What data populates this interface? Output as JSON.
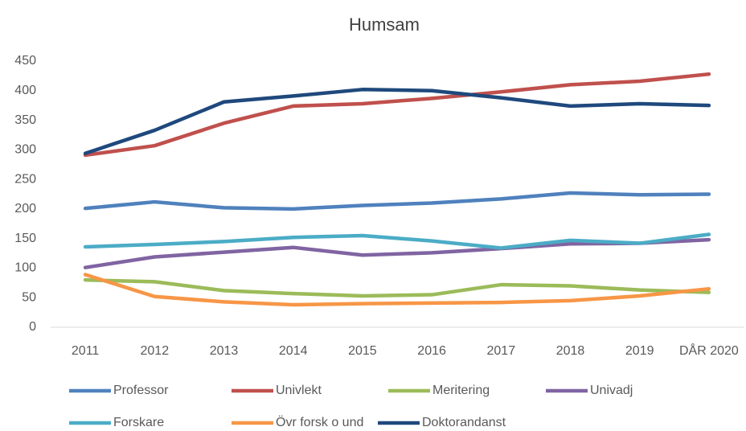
{
  "chart_data": {
    "type": "line",
    "title": "Humsam",
    "categories": [
      "2011",
      "2012",
      "2013",
      "2014",
      "2015",
      "2016",
      "2017",
      "2018",
      "2019",
      "DÅR 2020"
    ],
    "series": [
      {
        "name": "Professor",
        "color": "#4f81bd",
        "values": [
          201,
          212,
          202,
          200,
          206,
          210,
          217,
          227,
          224,
          225
        ]
      },
      {
        "name": "Univlekt",
        "color": "#c0504d",
        "values": [
          291,
          307,
          345,
          374,
          378,
          387,
          398,
          410,
          416,
          428
        ]
      },
      {
        "name": "Meritering",
        "color": "#9bbb59",
        "values": [
          80,
          77,
          62,
          57,
          53,
          55,
          72,
          70,
          63,
          59
        ]
      },
      {
        "name": "Univadj",
        "color": "#8064a2",
        "values": [
          101,
          119,
          127,
          135,
          122,
          126,
          133,
          141,
          142,
          148
        ]
      },
      {
        "name": "Forskare",
        "color": "#4bacc6",
        "values": [
          136,
          140,
          145,
          152,
          155,
          146,
          134,
          147,
          142,
          157
        ]
      },
      {
        "name": "Övr forsk o und",
        "color": "#f79646",
        "values": [
          89,
          52,
          43,
          38,
          40,
          41,
          42,
          45,
          53,
          65
        ]
      },
      {
        "name": "Doktorandanst",
        "color": "#1f497d",
        "values": [
          294,
          333,
          381,
          391,
          402,
          400,
          388,
          374,
          378,
          375
        ]
      }
    ],
    "ylim": [
      0,
      450
    ],
    "yticks": [
      0,
      50,
      100,
      150,
      200,
      250,
      300,
      350,
      400,
      450
    ],
    "grid": false,
    "legend": "bottom"
  }
}
